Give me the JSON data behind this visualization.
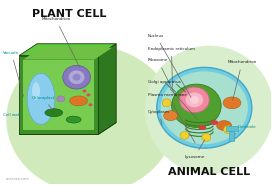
{
  "title_plant": "PLANT CELL",
  "title_animal": "ANIMAL CELL",
  "website": "rscience.com",
  "bg_light_green": "#d8eecc",
  "plant_box": {
    "front_color": "#3a8c25",
    "top_color": "#5ab832",
    "right_color": "#2e7018",
    "dark_edge": "#1e5010",
    "inner_color": "#6ec840"
  },
  "animal_cell": {
    "outer_color": "#70cce0",
    "inner_color": "#b8e8d8",
    "green_area_color": "#5aaa38",
    "nucleus_color": "#f088a0",
    "nucleus_inner": "#f8b8c8"
  }
}
